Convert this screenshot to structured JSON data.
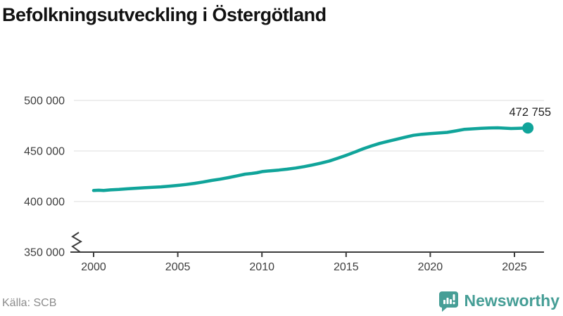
{
  "title": "Befolkningsutveckling i Östergötland",
  "source": "Källa: SCB",
  "branding": {
    "name": "Newsworthy",
    "icon": "newsworthy-chart-bubble-icon",
    "color": "#469e96"
  },
  "colors": {
    "line": "#10a49a",
    "grid": "#e3e3e3",
    "axis": "#3c3c3c",
    "tick_label": "#3d3d3d",
    "end_label": "#1f1f1f"
  },
  "chart_data": {
    "type": "line",
    "title": "Befolkningsutveckling i Östergötland",
    "xlabel": "",
    "ylabel": "",
    "grid": "horizontal",
    "legend": "none",
    "axis_break_at_y_bottom": true,
    "xlim": [
      1998.8,
      2026.8
    ],
    "ylim": [
      350000,
      500000
    ],
    "x_ticks": [
      {
        "value": 2000,
        "label": "2000"
      },
      {
        "value": 2005,
        "label": "2005"
      },
      {
        "value": 2010,
        "label": "2010"
      },
      {
        "value": 2015,
        "label": "2015"
      },
      {
        "value": 2020,
        "label": "2020"
      },
      {
        "value": 2025,
        "label": "2025"
      }
    ],
    "y_ticks": [
      {
        "value": 350000,
        "label": "350 000"
      },
      {
        "value": 400000,
        "label": "400 000"
      },
      {
        "value": 450000,
        "label": "450 000"
      },
      {
        "value": 500000,
        "label": "500 000"
      }
    ],
    "series": [
      {
        "name": "Befolkning",
        "points": [
          [
            2000.0,
            410900
          ],
          [
            2000.3,
            411150
          ],
          [
            2000.6,
            411000
          ],
          [
            2001.0,
            411500
          ],
          [
            2001.5,
            411950
          ],
          [
            2002.0,
            412600
          ],
          [
            2002.5,
            413100
          ],
          [
            2003.0,
            413600
          ],
          [
            2003.5,
            414050
          ],
          [
            2004.0,
            414500
          ],
          [
            2004.5,
            415200
          ],
          [
            2005.0,
            416000
          ],
          [
            2005.5,
            416900
          ],
          [
            2006.0,
            418000
          ],
          [
            2006.5,
            419300
          ],
          [
            2007.0,
            420800
          ],
          [
            2007.5,
            422100
          ],
          [
            2008.0,
            423600
          ],
          [
            2008.5,
            425300
          ],
          [
            2009.0,
            427100
          ],
          [
            2009.4,
            427800
          ],
          [
            2009.7,
            428500
          ],
          [
            2010.0,
            429600
          ],
          [
            2010.5,
            430400
          ],
          [
            2011.0,
            431100
          ],
          [
            2011.5,
            432000
          ],
          [
            2012.0,
            433100
          ],
          [
            2012.5,
            434500
          ],
          [
            2013.0,
            436200
          ],
          [
            2013.5,
            438000
          ],
          [
            2014.0,
            440100
          ],
          [
            2014.5,
            442800
          ],
          [
            2015.0,
            445700
          ],
          [
            2015.5,
            448800
          ],
          [
            2016.0,
            452100
          ],
          [
            2016.5,
            454900
          ],
          [
            2017.0,
            457500
          ],
          [
            2017.5,
            459600
          ],
          [
            2018.0,
            461600
          ],
          [
            2018.5,
            463600
          ],
          [
            2019.0,
            465500
          ],
          [
            2019.5,
            466500
          ],
          [
            2020.0,
            467200
          ],
          [
            2020.5,
            467800
          ],
          [
            2021.0,
            468400
          ],
          [
            2021.5,
            469800
          ],
          [
            2022.0,
            471300
          ],
          [
            2022.5,
            471900
          ],
          [
            2023.0,
            472400
          ],
          [
            2023.5,
            472700
          ],
          [
            2024.0,
            472950
          ],
          [
            2024.4,
            472550
          ],
          [
            2024.8,
            472250
          ],
          [
            2025.2,
            472450
          ],
          [
            2025.8,
            472755
          ]
        ]
      }
    ],
    "end_point": {
      "x": 2025.8,
      "y": 472755,
      "label": "472 755"
    }
  }
}
